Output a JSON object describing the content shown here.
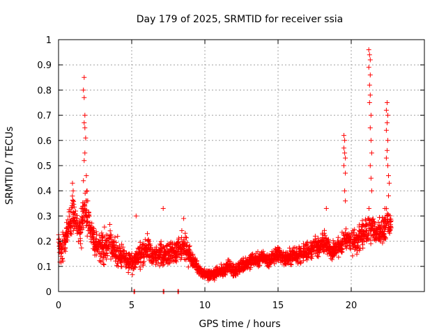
{
  "chart_data": {
    "type": "scatter",
    "title": "Day 179 of 2025, SRMTID for receiver ssia",
    "xlabel": "GPS time / hours",
    "ylabel": "SRMTID / TECUs",
    "xlim": [
      0,
      25
    ],
    "ylim": [
      0,
      1
    ],
    "grid": true,
    "marker": "+",
    "color": "#ff0000",
    "x_ticks": [
      0,
      5,
      10,
      15,
      20
    ],
    "x_tick_labels": [
      "0",
      "5",
      "10",
      "15",
      "20"
    ],
    "y_ticks": [
      0,
      0.1,
      0.2,
      0.3,
      0.4,
      0.5,
      0.6,
      0.7,
      0.8,
      0.9,
      1
    ],
    "y_tick_labels": [
      "0",
      "0.1",
      "0.2",
      "0.3",
      "0.4",
      "0.5",
      "0.6",
      "0.7",
      "0.8",
      "0.9",
      "1"
    ],
    "series": [
      {
        "name": "SRMTID",
        "note": "envelope of the dense + marker cloud: [x_hours, y_low, y_high]",
        "envelope": [
          [
            0.0,
            0.1,
            0.27
          ],
          [
            0.25,
            0.08,
            0.24
          ],
          [
            0.5,
            0.14,
            0.3
          ],
          [
            0.75,
            0.18,
            0.36
          ],
          [
            1.0,
            0.2,
            0.42
          ],
          [
            1.25,
            0.18,
            0.33
          ],
          [
            1.5,
            0.15,
            0.32
          ],
          [
            1.75,
            0.2,
            0.47
          ],
          [
            2.0,
            0.18,
            0.4
          ],
          [
            2.25,
            0.16,
            0.3
          ],
          [
            2.5,
            0.12,
            0.27
          ],
          [
            2.75,
            0.1,
            0.25
          ],
          [
            3.0,
            0.09,
            0.26
          ],
          [
            3.25,
            0.08,
            0.27
          ],
          [
            3.5,
            0.1,
            0.29
          ],
          [
            3.75,
            0.1,
            0.22
          ],
          [
            4.0,
            0.08,
            0.25
          ],
          [
            4.25,
            0.08,
            0.2
          ],
          [
            4.5,
            0.08,
            0.19
          ],
          [
            4.75,
            0.07,
            0.17
          ],
          [
            5.0,
            0.06,
            0.17
          ],
          [
            5.25,
            0.07,
            0.18
          ],
          [
            5.5,
            0.08,
            0.2
          ],
          [
            5.75,
            0.08,
            0.22
          ],
          [
            6.0,
            0.1,
            0.25
          ],
          [
            6.25,
            0.1,
            0.22
          ],
          [
            6.5,
            0.08,
            0.2
          ],
          [
            6.75,
            0.09,
            0.2
          ],
          [
            7.0,
            0.09,
            0.22
          ],
          [
            7.25,
            0.08,
            0.2
          ],
          [
            7.5,
            0.08,
            0.22
          ],
          [
            7.75,
            0.09,
            0.22
          ],
          [
            8.0,
            0.09,
            0.22
          ],
          [
            8.25,
            0.08,
            0.24
          ],
          [
            8.5,
            0.09,
            0.26
          ],
          [
            8.75,
            0.08,
            0.24
          ],
          [
            9.0,
            0.08,
            0.2
          ],
          [
            9.25,
            0.07,
            0.17
          ],
          [
            9.5,
            0.06,
            0.13
          ],
          [
            9.75,
            0.05,
            0.11
          ],
          [
            10.0,
            0.04,
            0.1
          ],
          [
            10.25,
            0.04,
            0.09
          ],
          [
            10.5,
            0.04,
            0.09
          ],
          [
            10.75,
            0.04,
            0.1
          ],
          [
            11.0,
            0.05,
            0.11
          ],
          [
            11.25,
            0.05,
            0.12
          ],
          [
            11.5,
            0.06,
            0.14
          ],
          [
            11.75,
            0.06,
            0.13
          ],
          [
            12.0,
            0.05,
            0.11
          ],
          [
            12.25,
            0.06,
            0.12
          ],
          [
            12.5,
            0.07,
            0.14
          ],
          [
            12.75,
            0.07,
            0.15
          ],
          [
            13.0,
            0.08,
            0.15
          ],
          [
            13.25,
            0.09,
            0.16
          ],
          [
            13.5,
            0.09,
            0.16
          ],
          [
            13.75,
            0.09,
            0.17
          ],
          [
            14.0,
            0.1,
            0.17
          ],
          [
            14.25,
            0.09,
            0.16
          ],
          [
            14.5,
            0.09,
            0.16
          ],
          [
            14.75,
            0.1,
            0.18
          ],
          [
            15.0,
            0.11,
            0.19
          ],
          [
            15.25,
            0.1,
            0.18
          ],
          [
            15.5,
            0.09,
            0.17
          ],
          [
            15.75,
            0.09,
            0.18
          ],
          [
            16.0,
            0.09,
            0.19
          ],
          [
            16.25,
            0.1,
            0.18
          ],
          [
            16.5,
            0.1,
            0.2
          ],
          [
            16.75,
            0.11,
            0.2
          ],
          [
            17.0,
            0.11,
            0.21
          ],
          [
            17.25,
            0.12,
            0.22
          ],
          [
            17.5,
            0.12,
            0.23
          ],
          [
            17.75,
            0.13,
            0.24
          ],
          [
            18.0,
            0.14,
            0.25
          ],
          [
            18.25,
            0.14,
            0.26
          ],
          [
            18.5,
            0.12,
            0.22
          ],
          [
            18.75,
            0.11,
            0.21
          ],
          [
            19.0,
            0.12,
            0.22
          ],
          [
            19.25,
            0.13,
            0.24
          ],
          [
            19.5,
            0.14,
            0.26
          ],
          [
            19.75,
            0.15,
            0.26
          ],
          [
            20.0,
            0.14,
            0.25
          ],
          [
            20.25,
            0.13,
            0.27
          ],
          [
            20.5,
            0.12,
            0.28
          ],
          [
            20.75,
            0.15,
            0.3
          ],
          [
            21.0,
            0.15,
            0.32
          ],
          [
            21.25,
            0.18,
            0.34
          ],
          [
            21.5,
            0.17,
            0.32
          ],
          [
            21.75,
            0.16,
            0.31
          ],
          [
            22.0,
            0.17,
            0.32
          ],
          [
            22.25,
            0.18,
            0.33
          ],
          [
            22.5,
            0.2,
            0.35
          ],
          [
            22.75,
            0.22,
            0.33
          ]
        ],
        "excursions": [
          [
            1.75,
            0.85
          ],
          [
            1.7,
            0.8
          ],
          [
            1.75,
            0.77
          ],
          [
            1.8,
            0.7
          ],
          [
            1.75,
            0.67
          ],
          [
            1.8,
            0.65
          ],
          [
            1.85,
            0.61
          ],
          [
            1.8,
            0.55
          ],
          [
            1.75,
            0.52
          ],
          [
            1.9,
            0.46
          ],
          [
            1.7,
            0.44
          ],
          [
            1.95,
            0.4
          ],
          [
            2.0,
            0.36
          ],
          [
            0.95,
            0.43
          ],
          [
            1.0,
            0.4
          ],
          [
            7.15,
            0.33
          ],
          [
            5.3,
            0.3
          ],
          [
            8.55,
            0.29
          ],
          [
            18.3,
            0.33
          ],
          [
            19.5,
            0.62
          ],
          [
            19.55,
            0.6
          ],
          [
            19.5,
            0.57
          ],
          [
            19.55,
            0.55
          ],
          [
            19.6,
            0.53
          ],
          [
            19.5,
            0.5
          ],
          [
            19.6,
            0.47
          ],
          [
            19.55,
            0.4
          ],
          [
            19.6,
            0.36
          ],
          [
            21.2,
            0.96
          ],
          [
            21.25,
            0.94
          ],
          [
            21.3,
            0.92
          ],
          [
            21.2,
            0.89
          ],
          [
            21.3,
            0.86
          ],
          [
            21.25,
            0.82
          ],
          [
            21.3,
            0.78
          ],
          [
            21.25,
            0.75
          ],
          [
            21.35,
            0.7
          ],
          [
            21.3,
            0.65
          ],
          [
            21.35,
            0.6
          ],
          [
            21.4,
            0.55
          ],
          [
            21.3,
            0.5
          ],
          [
            21.35,
            0.45
          ],
          [
            21.4,
            0.4
          ],
          [
            22.45,
            0.75
          ],
          [
            22.4,
            0.72
          ],
          [
            22.5,
            0.7
          ],
          [
            22.45,
            0.67
          ],
          [
            22.4,
            0.64
          ],
          [
            22.5,
            0.6
          ],
          [
            22.45,
            0.56
          ],
          [
            22.4,
            0.53
          ],
          [
            22.5,
            0.5
          ],
          [
            22.55,
            0.46
          ],
          [
            22.6,
            0.43
          ],
          [
            22.55,
            0.38
          ],
          [
            22.3,
            0.33
          ]
        ],
        "near_zero": [
          [
            5.15,
            0.0
          ],
          [
            7.15,
            0.0
          ],
          [
            8.15,
            0.0
          ]
        ]
      }
    ]
  }
}
